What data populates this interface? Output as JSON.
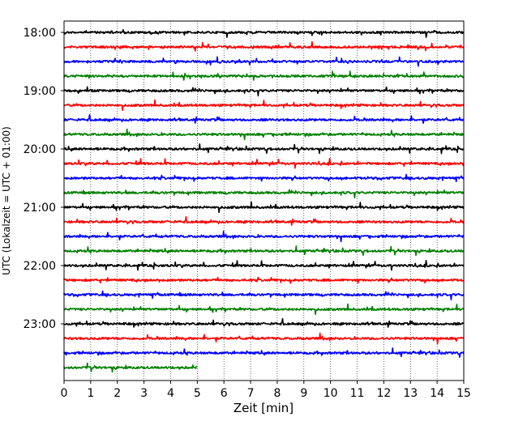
{
  "chart_data": {
    "type": "line",
    "title": "",
    "xlabel": "Zeit  [min]",
    "ylabel": "UTC (Lokalzeit = UTC + 01:00)",
    "xlim": [
      0,
      15
    ],
    "x_ticks": [
      "0",
      "1",
      "2",
      "3",
      "4",
      "5",
      "6",
      "7",
      "8",
      "9",
      "10",
      "11",
      "12",
      "13",
      "14",
      "15"
    ],
    "y_ticks": [
      "18:00",
      "19:00",
      "20:00",
      "21:00",
      "22:00",
      "23:00"
    ],
    "grid": "vertical-dotted",
    "rows_per_hour": 4,
    "row_colors": [
      "#000000",
      "#ff0000",
      "#0000ff",
      "#008000"
    ],
    "series": [
      {
        "start": "18:00",
        "end_min": 15
      },
      {
        "start": "18:15",
        "end_min": 15
      },
      {
        "start": "18:30",
        "end_min": 15
      },
      {
        "start": "18:45",
        "end_min": 15
      },
      {
        "start": "19:00",
        "end_min": 15
      },
      {
        "start": "19:15",
        "end_min": 15
      },
      {
        "start": "19:30",
        "end_min": 15
      },
      {
        "start": "19:45",
        "end_min": 15
      },
      {
        "start": "20:00",
        "end_min": 15
      },
      {
        "start": "20:15",
        "end_min": 15
      },
      {
        "start": "20:30",
        "end_min": 15
      },
      {
        "start": "20:45",
        "end_min": 15
      },
      {
        "start": "21:00",
        "end_min": 15
      },
      {
        "start": "21:15",
        "end_min": 15
      },
      {
        "start": "21:30",
        "end_min": 15
      },
      {
        "start": "21:45",
        "end_min": 15
      },
      {
        "start": "22:00",
        "end_min": 15
      },
      {
        "start": "22:15",
        "end_min": 15
      },
      {
        "start": "22:30",
        "end_min": 15
      },
      {
        "start": "22:45",
        "end_min": 15
      },
      {
        "start": "23:00",
        "end_min": 15
      },
      {
        "start": "23:15",
        "end_min": 15
      },
      {
        "start": "23:30",
        "end_min": 15
      },
      {
        "start": "23:45",
        "end_min": 5
      }
    ]
  }
}
